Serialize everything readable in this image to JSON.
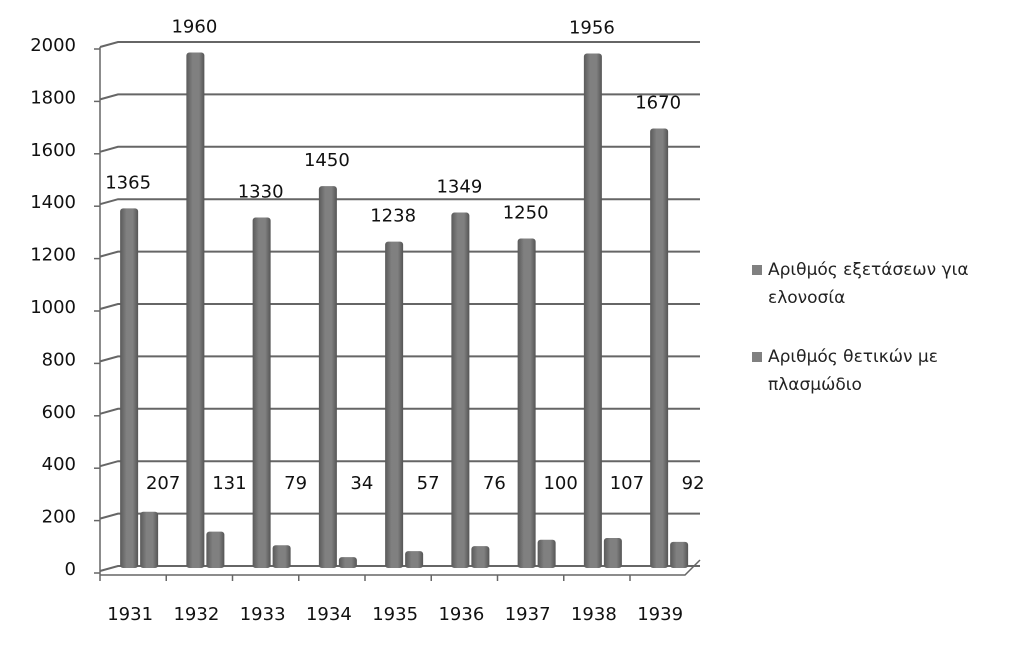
{
  "chart_data": {
    "type": "bar",
    "categories": [
      "1931",
      "1932",
      "1933",
      "1934",
      "1935",
      "1936",
      "1937",
      "1938",
      "1939"
    ],
    "series": [
      {
        "name": "Αριθμός εξετάσεων για ελονοσία",
        "color": "#808080",
        "values": [
          1365,
          1960,
          1330,
          1450,
          1238,
          1349,
          1250,
          1956,
          1670
        ]
      },
      {
        "name": "Αριθμός θετικών με πλασμώδιο",
        "color": "#808080",
        "values": [
          207,
          131,
          79,
          34,
          57,
          76,
          100,
          107,
          92
        ]
      }
    ],
    "ylim": [
      0,
      2000
    ],
    "yticks": [
      0,
      200,
      400,
      600,
      800,
      1000,
      1200,
      1400,
      1600,
      1800,
      2000
    ],
    "grid": true,
    "legend": "right"
  }
}
